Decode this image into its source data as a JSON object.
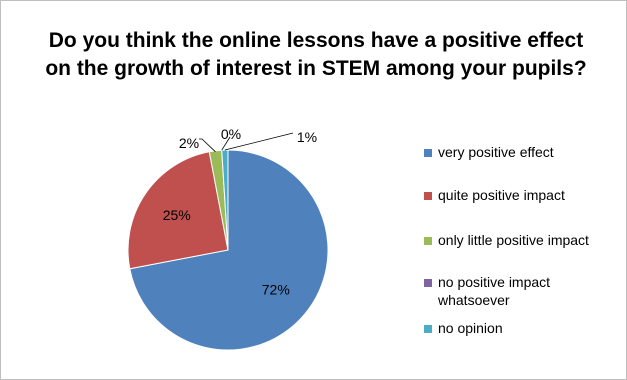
{
  "chart_data": {
    "type": "pie",
    "title": "Do you think the online lessons have a positive effect on the growth of interest in STEM among your pupils?",
    "categories": [
      "very positive effect",
      "quite positive impact",
      "only little positive impact",
      "no positive impact whatsoever",
      "no opinion"
    ],
    "values": [
      72,
      25,
      2,
      0,
      1
    ],
    "labels": [
      "72%",
      "25%",
      "2%",
      "0%",
      "1%"
    ],
    "colors": [
      "#4f81bd",
      "#c0504d",
      "#9bbb59",
      "#8064a2",
      "#4bacc6"
    ],
    "legend_position": "right"
  }
}
